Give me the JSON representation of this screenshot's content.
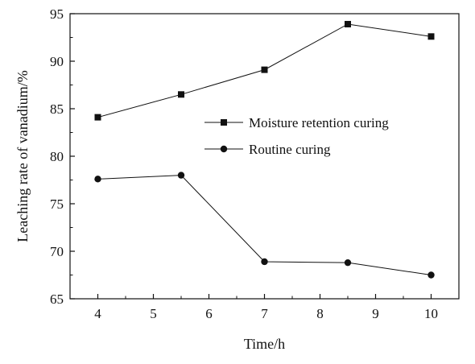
{
  "chart_data": {
    "type": "line",
    "title": "",
    "xlabel": "Time/h",
    "ylabel": "Leaching rate of vanadium/%",
    "xlim": [
      3.5,
      10.5
    ],
    "ylim": [
      65,
      95
    ],
    "x_ticks": [
      4,
      5,
      6,
      7,
      8,
      9,
      10
    ],
    "y_ticks": [
      65,
      70,
      75,
      80,
      85,
      90,
      95
    ],
    "x": [
      4,
      5.5,
      7,
      8.5,
      10
    ],
    "grid": false,
    "legend_position": "center-right",
    "series": [
      {
        "name": "Moisture retention curing",
        "marker": "square",
        "color": "#111111",
        "values": [
          84.1,
          86.5,
          89.1,
          93.9,
          92.6
        ]
      },
      {
        "name": "Routine curing",
        "marker": "circle",
        "color": "#111111",
        "values": [
          77.6,
          78.0,
          68.9,
          68.8,
          67.5
        ]
      }
    ]
  }
}
